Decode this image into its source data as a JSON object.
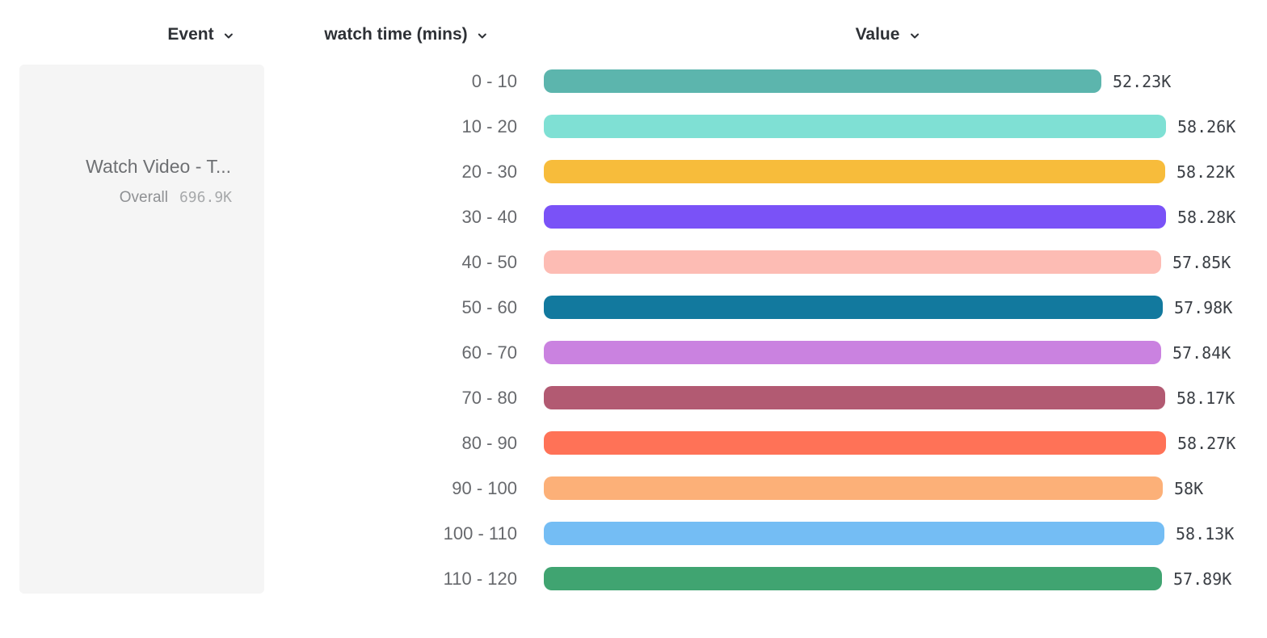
{
  "headers": {
    "event": {
      "label": "Event"
    },
    "breakdown": {
      "label": "watch time (mins)"
    },
    "value": {
      "label": "Value"
    }
  },
  "event_card": {
    "title": "Watch Video - T...",
    "overall_label": "Overall",
    "overall_value": "696.9K"
  },
  "colors": {
    "card_bg": "#f5f5f5",
    "header_text": "#2e3136",
    "bucket_label_text": "#67696d",
    "value_label_text": "#3b3f45",
    "card_title_text": "#6e7073",
    "card_overall_label_text": "#8e9093",
    "card_overall_value_text": "#a7a9ab"
  },
  "chart_data": {
    "type": "bar",
    "orientation": "horizontal",
    "title": "",
    "xlabel": "Value",
    "ylabel": "watch time (mins)",
    "legend": "none",
    "grid": false,
    "categories": [
      "0 - 10",
      "10 - 20",
      "20 - 30",
      "30 - 40",
      "40 - 50",
      "50 - 60",
      "60 - 70",
      "70 - 80",
      "80 - 90",
      "90 - 100",
      "100 - 110",
      "110 - 120"
    ],
    "values_k": [
      52.23,
      58.26,
      58.22,
      58.28,
      57.85,
      57.98,
      57.84,
      58.17,
      58.27,
      58.0,
      58.13,
      57.89
    ],
    "value_labels": [
      "52.23K",
      "58.26K",
      "58.22K",
      "58.28K",
      "57.85K",
      "57.98K",
      "57.84K",
      "58.17K",
      "58.27K",
      "58K",
      "58.13K",
      "57.89K"
    ],
    "bar_colors": [
      "#5cb5ad",
      "#7fe0d4",
      "#f7bc3b",
      "#7a52f7",
      "#fdbcb4",
      "#12799e",
      "#ca82e0",
      "#b25a72",
      "#ff7257",
      "#fcb078",
      "#74bdf4",
      "#40a471"
    ],
    "xlim_k": [
      0,
      58.28
    ],
    "overall_total": "696.9K"
  }
}
